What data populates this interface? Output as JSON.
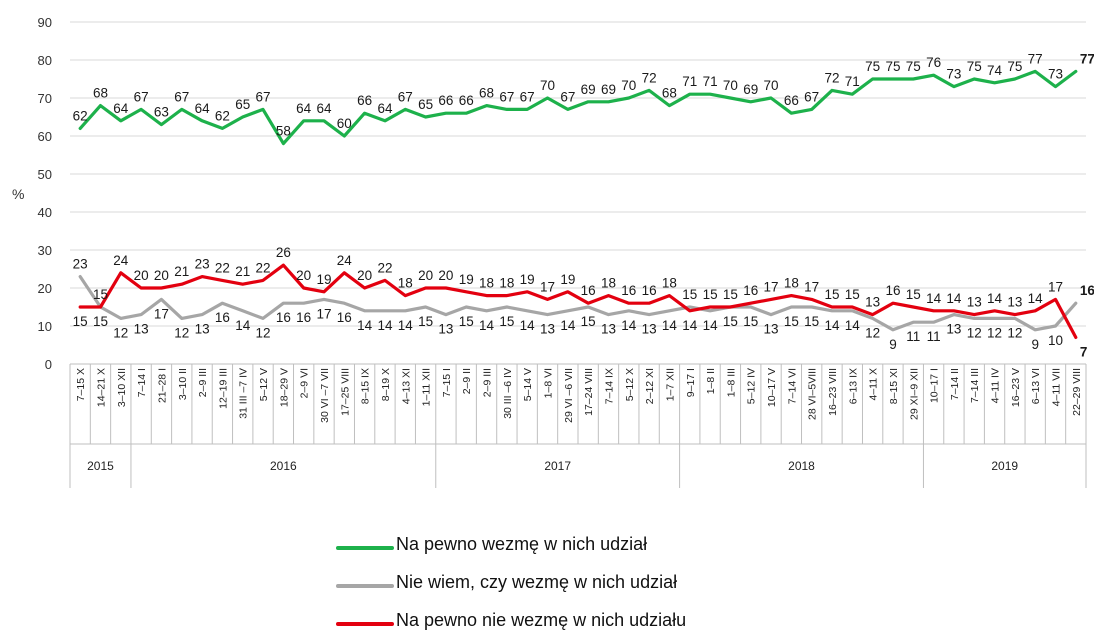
{
  "chart_data": {
    "type": "line",
    "ylabel": "%",
    "ylim": [
      0,
      90
    ],
    "yticks": [
      0,
      10,
      20,
      30,
      40,
      50,
      60,
      70,
      80,
      90
    ],
    "grid": "horizontal",
    "legend_position": "bottom-center",
    "categories": [
      "7–15 X",
      "14–21 X",
      "3–10 XII",
      "7–14 I",
      "21–28 I",
      "3–10 II",
      "2–9 III",
      "12–19 III",
      "31 III –7 IV",
      "5–12 V",
      "18–29 V",
      "2–9 VI",
      "30 VI –7 VII",
      "17–25 VIII",
      "8–15 IX",
      "8–19 X",
      "4–13 XI",
      "1–11 XII",
      "7–15 I",
      "2–9 II",
      "2–9 III",
      "30 III –6 IV",
      "5–14 V",
      "1–8 VI",
      "29 VI –6 VII",
      "17–24 VIII",
      "7–14 IX",
      "5–12 X",
      "2–12 XI",
      "1–7 XII",
      "9–17 I",
      "1–8 II",
      "1–8 III",
      "5–12 IV",
      "10–17 V",
      "7–14 VI",
      "28 VI–5VIII",
      "16–23 VIII",
      "6–13 IX",
      "4–11 X",
      "8–15 XI",
      "29 XI–9 XII",
      "10–17 I",
      "7–14 II",
      "7–14 III",
      "4–11 IV",
      "16–23 V",
      "6–13 VI",
      "4–11 VII",
      "22–29 VIII"
    ],
    "years": [
      {
        "label": "2015",
        "count": 3
      },
      {
        "label": "2016",
        "count": 15
      },
      {
        "label": "2017",
        "count": 12
      },
      {
        "label": "2018",
        "count": 12
      },
      {
        "label": "2019",
        "count": 8
      }
    ],
    "series": [
      {
        "name": "Na pewno wezmę w nich udział",
        "color": "#1db14b",
        "values": [
          62,
          68,
          64,
          67,
          63,
          67,
          64,
          62,
          65,
          67,
          58,
          64,
          64,
          60,
          66,
          64,
          67,
          65,
          66,
          66,
          68,
          67,
          67,
          70,
          67,
          69,
          69,
          70,
          72,
          68,
          71,
          71,
          70,
          69,
          70,
          66,
          67,
          72,
          71,
          75,
          75,
          75,
          76,
          73,
          75,
          74,
          75,
          77,
          73,
          77
        ]
      },
      {
        "name": "Nie wiem, czy wezmę w nich udział",
        "color": "#a6a6a6",
        "values": [
          23,
          15,
          12,
          13,
          17,
          12,
          13,
          16,
          14,
          12,
          16,
          16,
          17,
          16,
          14,
          14,
          14,
          15,
          13,
          15,
          14,
          15,
          14,
          13,
          14,
          15,
          13,
          14,
          13,
          14,
          15,
          14,
          15,
          15,
          13,
          15,
          15,
          14,
          14,
          12,
          9,
          11,
          11,
          13,
          12,
          12,
          12,
          9,
          10,
          16
        ]
      },
      {
        "name": "Na pewno nie wezmę w nich udziału",
        "color": "#e3000f",
        "values": [
          15,
          15,
          24,
          20,
          20,
          21,
          23,
          22,
          21,
          22,
          26,
          20,
          19,
          24,
          20,
          22,
          18,
          20,
          20,
          19,
          18,
          18,
          19,
          17,
          19,
          16,
          18,
          16,
          16,
          18,
          14,
          15,
          15,
          16,
          17,
          18,
          17,
          15,
          15,
          13,
          16,
          15,
          14,
          14,
          13,
          14,
          13,
          14,
          17,
          7
        ]
      }
    ]
  }
}
